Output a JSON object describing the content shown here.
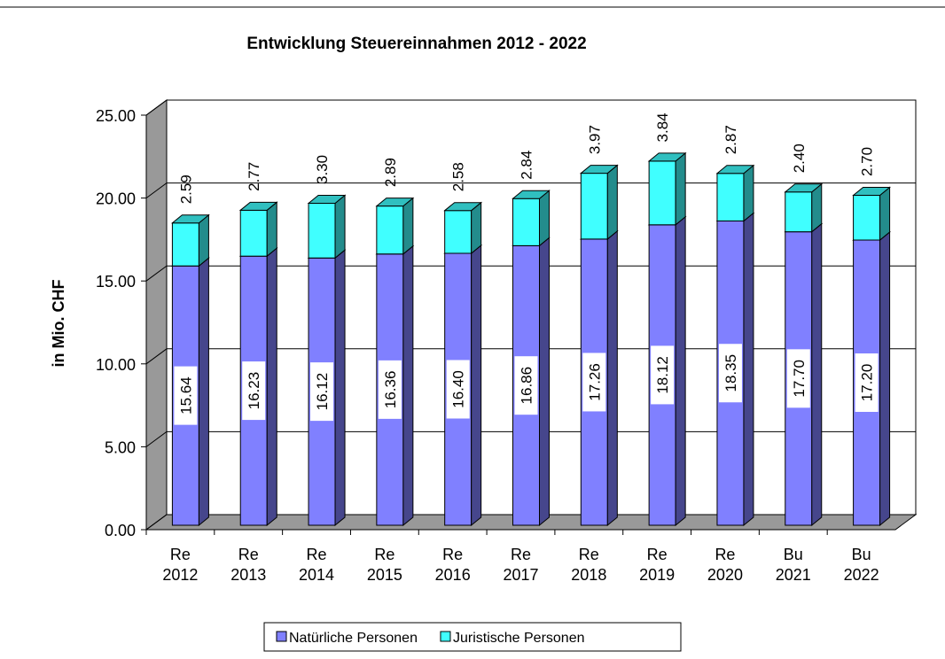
{
  "chart_data": {
    "type": "bar3d_stacked",
    "title": "Entwicklung Steuereinnahmen 2012 - 2022",
    "y_label": "in Mio. CHF",
    "categories": [
      "Re 2012",
      "Re 2013",
      "Re 2014",
      "Re 2015",
      "Re 2016",
      "Re 2017",
      "Re 2018",
      "Re 2019",
      "Re 2020",
      "Bu 2021",
      "Bu 2022"
    ],
    "series": [
      {
        "name": "Natürliche Personen",
        "color": "#8080ff",
        "values": [
          15.64,
          16.23,
          16.12,
          16.36,
          16.4,
          16.86,
          17.26,
          18.12,
          18.35,
          17.7,
          17.2
        ],
        "value_labels": [
          "15.64",
          "16.23",
          "16.12",
          "16.36",
          "16.40",
          "16.86",
          "17.26",
          "18.12",
          "18.35",
          "17.70",
          "17.20"
        ]
      },
      {
        "name": "Juristische Personen",
        "color": "#40ffff",
        "values": [
          2.59,
          2.77,
          3.3,
          2.89,
          2.58,
          2.84,
          3.97,
          3.84,
          2.87,
          2.4,
          2.7
        ],
        "value_labels": [
          "2.59",
          "2.77",
          "3.30",
          "2.89",
          "2.58",
          "2.84",
          "3.97",
          "3.84",
          "2.87",
          "2.40",
          "2.70"
        ]
      }
    ],
    "ylim": [
      0,
      25
    ],
    "yticks": [
      {
        "value": 0,
        "label": "0.00"
      },
      {
        "value": 5,
        "label": "5.00"
      },
      {
        "value": 10,
        "label": "10.00"
      },
      {
        "value": 15,
        "label": "15.00"
      },
      {
        "value": 20,
        "label": "20.00"
      },
      {
        "value": 25,
        "label": "25.00"
      }
    ],
    "grid": true
  }
}
